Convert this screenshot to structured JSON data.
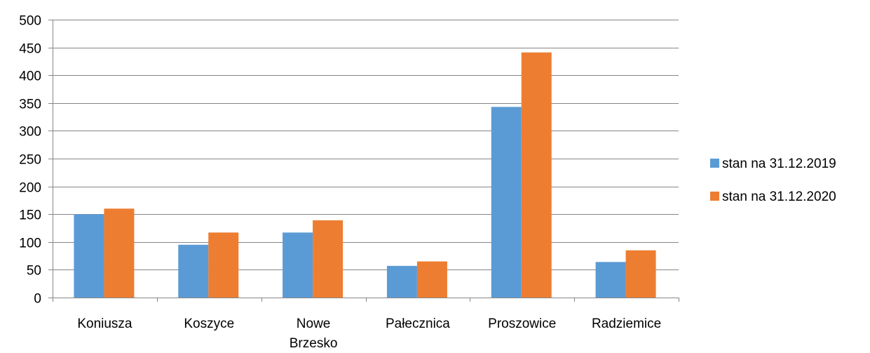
{
  "chart_data": {
    "type": "bar",
    "title": "",
    "xlabel": "",
    "ylabel": "",
    "categories": [
      "Koniusza",
      "Koszyce",
      "Nowe Brzesko",
      "Pałecznica",
      "Proszowice",
      "Radziemice"
    ],
    "series": [
      {
        "name": "stan na 31.12.2019",
        "color": "#5B9BD5",
        "values": [
          150,
          95,
          117,
          57,
          343,
          64
        ]
      },
      {
        "name": "stan na 31.12.2020",
        "color": "#ED7D31",
        "values": [
          160,
          117,
          139,
          65,
          441,
          85
        ]
      }
    ],
    "ylim": [
      0,
      500
    ],
    "yticks": [
      0,
      50,
      100,
      150,
      200,
      250,
      300,
      350,
      400,
      450,
      500
    ],
    "grid": true,
    "gridline_color": "#868686",
    "legend_position": "right"
  }
}
